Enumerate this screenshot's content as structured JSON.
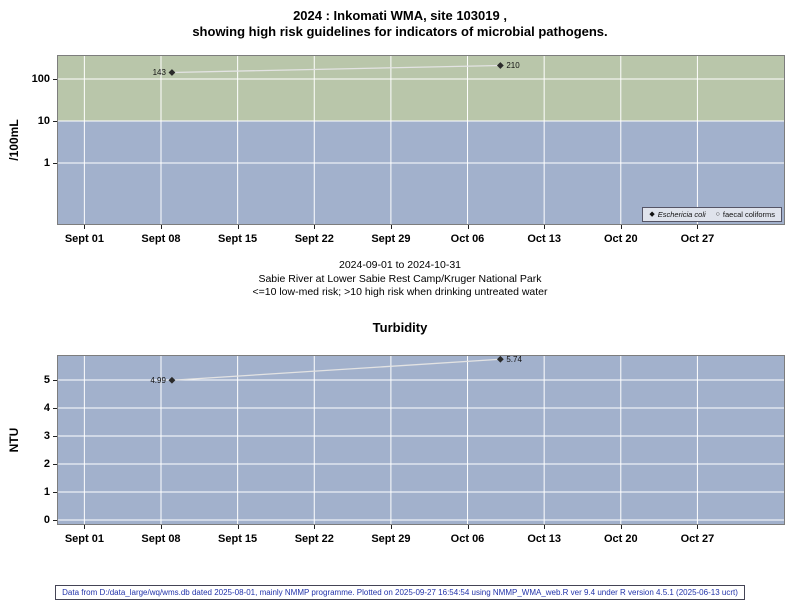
{
  "chart_data": [
    {
      "type": "line",
      "title_lines": [
        "2024 : Inkomati WMA, site 103019 ,",
        "showing high risk guidelines for indicators of microbial pathogens."
      ],
      "ylabel": "/100mL",
      "yscale": "log10",
      "yticks": [
        1,
        10,
        100
      ],
      "x_tick_labels": [
        "Sept 01",
        "Sept 08",
        "Sept 15",
        "Sept 22",
        "Sept 29",
        "Oct 06",
        "Oct 13",
        "Oct 20",
        "Oct 27"
      ],
      "x_tick_days": [
        0,
        7,
        14,
        21,
        28,
        35,
        42,
        49,
        56
      ],
      "series": [
        {
          "name": "Eschericia coli",
          "marker": "diamond",
          "points": [
            {
              "day": 8,
              "value": 143,
              "label": "143",
              "label_side": "left"
            },
            {
              "day": 38,
              "value": 210,
              "label": "210",
              "label_side": "right"
            }
          ]
        },
        {
          "name": "faecal coliforms",
          "marker": "open-circle",
          "points": []
        }
      ],
      "legend": [
        {
          "glyph": "◆",
          "label": "Eschericia coli"
        },
        {
          "glyph": "○",
          "label": "faecal coliforms"
        }
      ],
      "risk_threshold": 10,
      "colors": {
        "band_high": "#b9c6aa",
        "band_low": "#a2b1cc",
        "grid": "#ffffff",
        "series_line": "#e3e3e3",
        "marker": "#2a2a2a"
      },
      "annotations": [
        "2024-09-01 to 2024-10-31",
        "Sabie River at Lower Sabie Rest Camp/Kruger National Park",
        "<=10 low-med risk; >10 high risk when drinking untreated water"
      ]
    },
    {
      "type": "line",
      "title_lines": [
        "Turbidity"
      ],
      "ylabel": "NTU",
      "yscale": "linear",
      "yticks": [
        0,
        1,
        2,
        3,
        4,
        5
      ],
      "ylim": [
        -0.2,
        5.9
      ],
      "x_tick_labels": [
        "Sept 01",
        "Sept 08",
        "Sept 15",
        "Sept 22",
        "Sept 29",
        "Oct 06",
        "Oct 13",
        "Oct 20",
        "Oct 27"
      ],
      "x_tick_days": [
        0,
        7,
        14,
        21,
        28,
        35,
        42,
        49,
        56
      ],
      "series": [
        {
          "name": "Turbidity",
          "marker": "diamond",
          "points": [
            {
              "day": 8,
              "value": 4.99,
              "label": "4.99",
              "label_side": "left"
            },
            {
              "day": 38,
              "value": 5.74,
              "label": "5.74",
              "label_side": "right"
            }
          ]
        }
      ],
      "colors": {
        "band": "#a2b1cc",
        "grid": "#ffffff",
        "series_line": "#e3e3e3",
        "marker": "#2a2a2a"
      }
    }
  ],
  "footer": {
    "text": "Data from D:/data_large/wq/wms.db dated 2025-08-01, mainly NMMP programme. Plotted on 2025-09-27 16:54:54 using NMMP_WMA_web.R ver 9.4 under R version 4.5.1 (2025-06-13 ucrt)"
  }
}
